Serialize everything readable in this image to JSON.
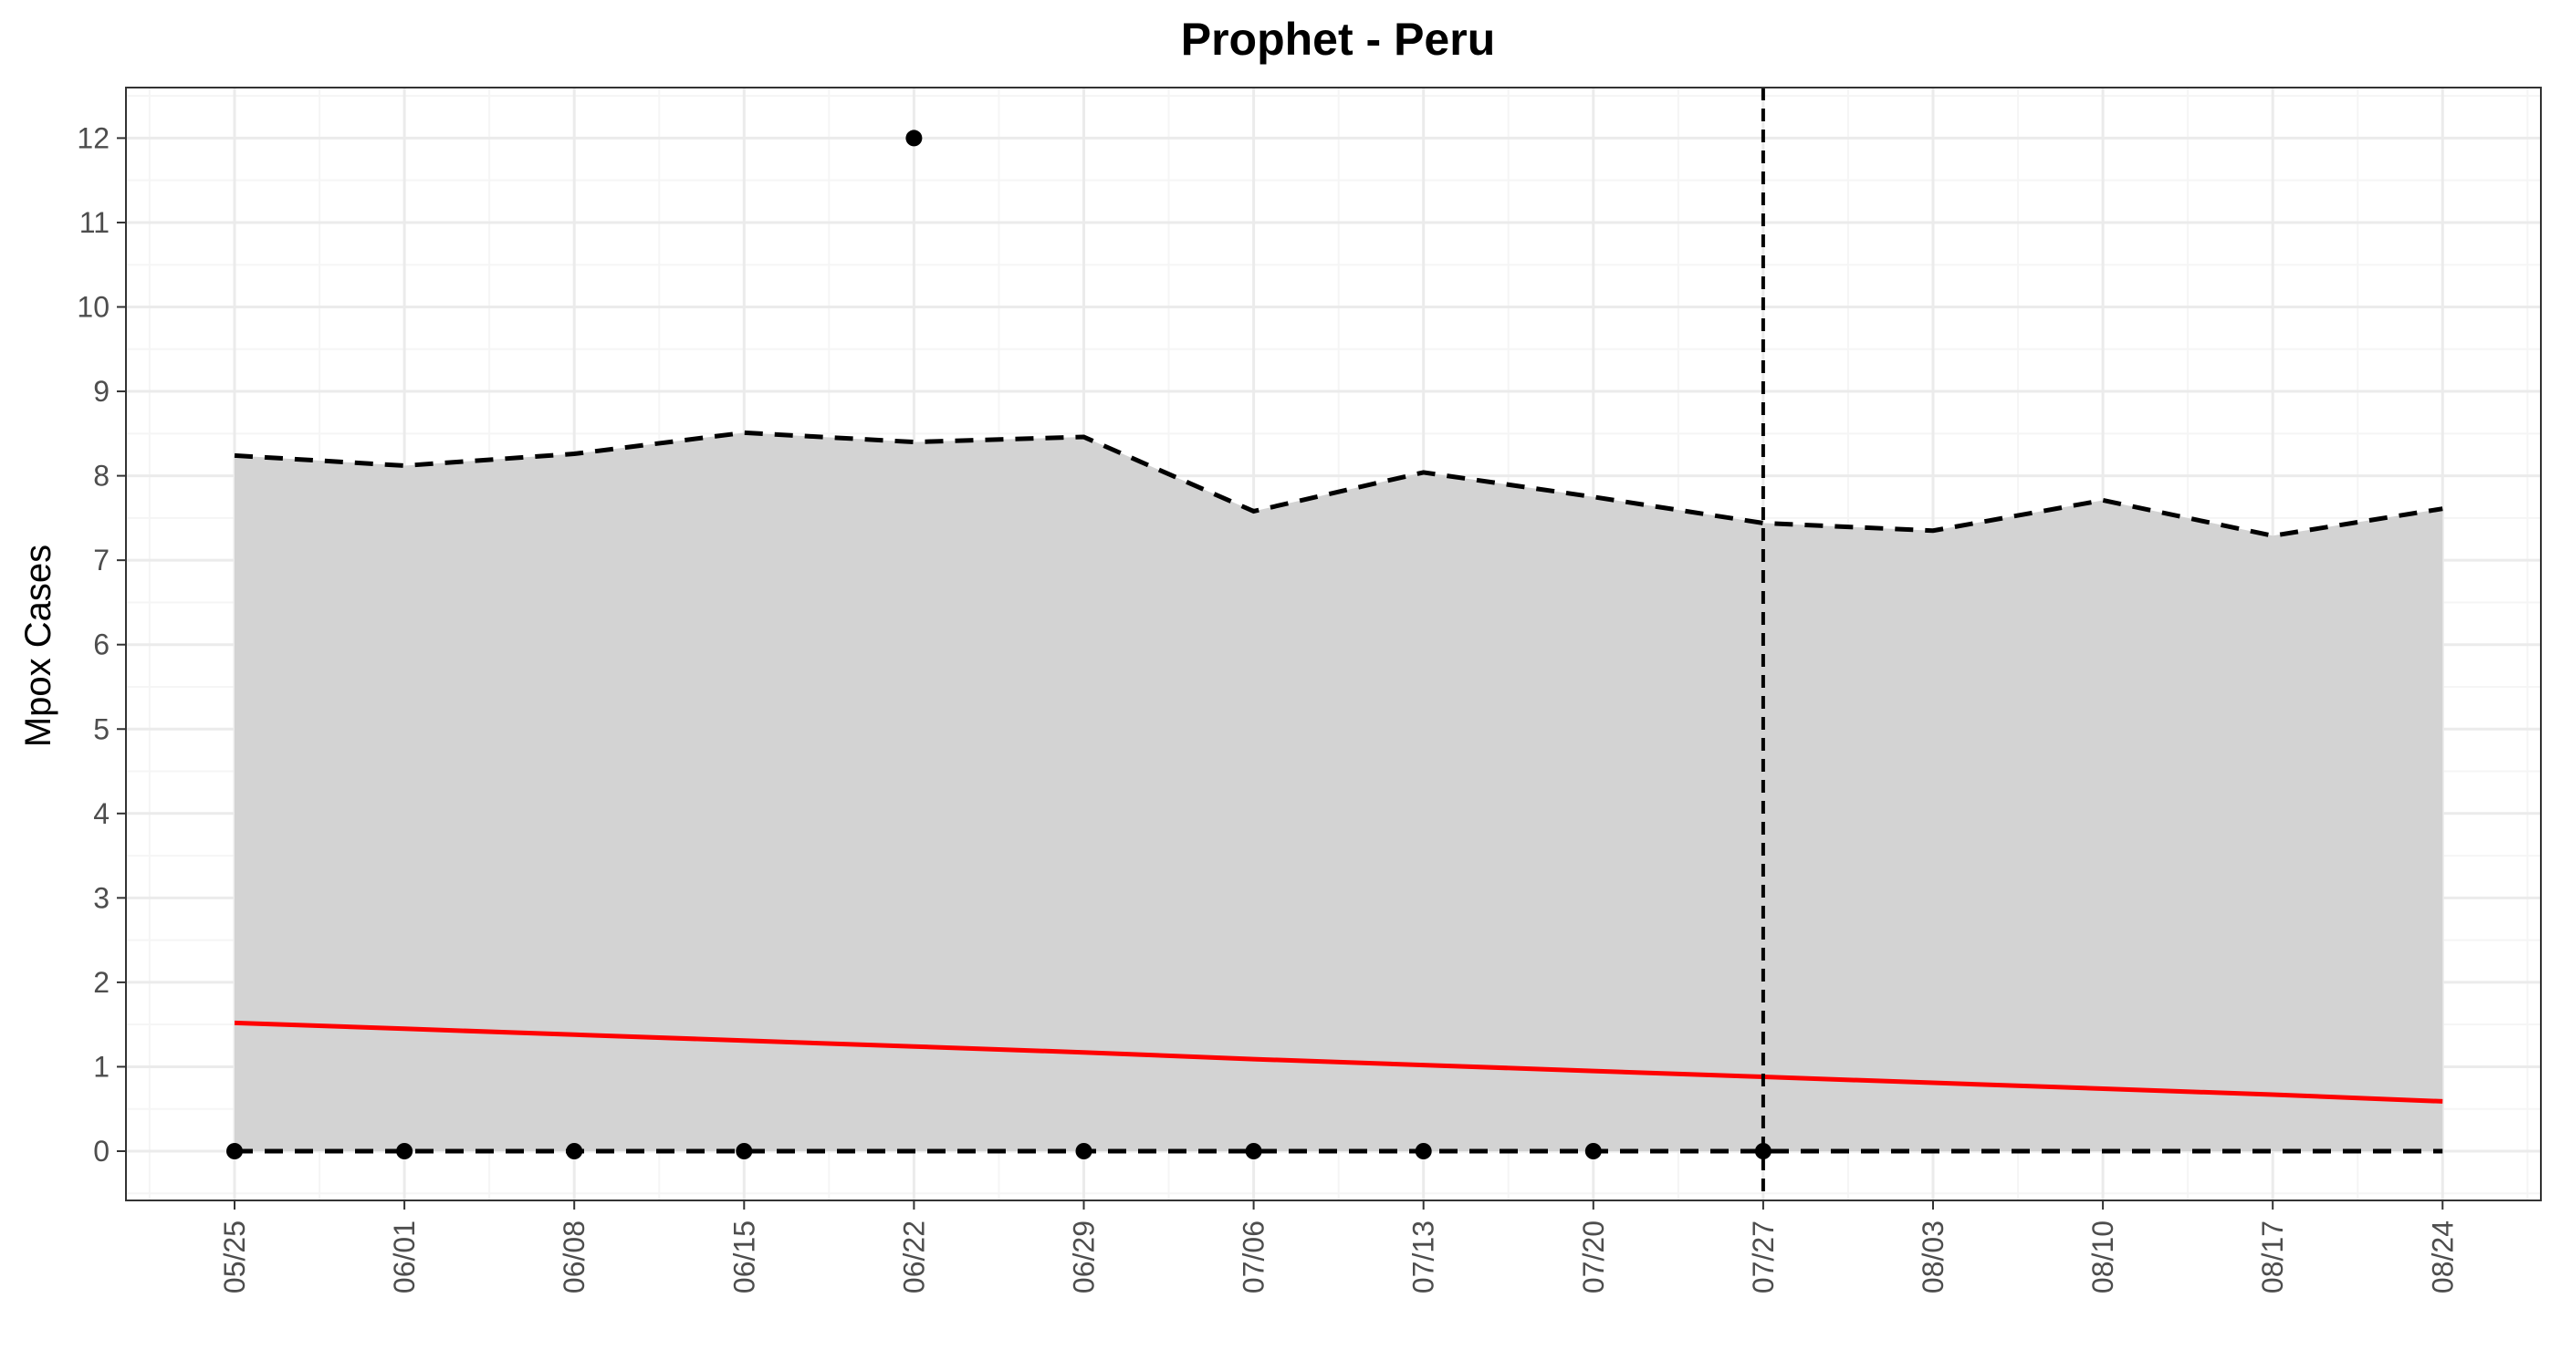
{
  "chart_data": {
    "type": "line",
    "title": "Prophet - Peru",
    "xlabel": "",
    "ylabel": "Mpox Cases",
    "x_tick_labels": [
      "05/25",
      "06/01",
      "06/08",
      "06/15",
      "06/22",
      "06/29",
      "07/06",
      "07/13",
      "07/20",
      "07/27",
      "08/03",
      "08/10",
      "08/17",
      "08/24"
    ],
    "y_ticks": [
      0,
      1,
      2,
      3,
      4,
      5,
      6,
      7,
      8,
      9,
      10,
      11,
      12
    ],
    "ylim": [
      -0.58,
      12.6
    ],
    "grid": true,
    "legend": "none",
    "forecast_start": "07/27",
    "series": [
      {
        "kind": "observed_points",
        "x": [
          "05/25",
          "06/01",
          "06/08",
          "06/15",
          "06/22",
          "06/29",
          "07/06",
          "07/13",
          "07/20",
          "07/27"
        ],
        "values": [
          0,
          0,
          0,
          0,
          12,
          0,
          0,
          0,
          0,
          0
        ]
      },
      {
        "kind": "fitted_line",
        "x": [
          "05/25",
          "06/01",
          "06/08",
          "06/15",
          "06/22",
          "06/29",
          "07/06",
          "07/13",
          "07/20",
          "07/27",
          "08/03",
          "08/10",
          "08/17",
          "08/24"
        ],
        "values": [
          1.52,
          1.45,
          1.38,
          1.31,
          1.24,
          1.17,
          1.09,
          1.02,
          0.95,
          0.88,
          0.81,
          0.74,
          0.67,
          0.59
        ]
      },
      {
        "kind": "upper_bound",
        "x": [
          "05/25",
          "06/01",
          "06/08",
          "06/15",
          "06/22",
          "06/29",
          "07/06",
          "07/13",
          "07/20",
          "07/27",
          "08/03",
          "08/10",
          "08/17",
          "08/24"
        ],
        "values": [
          8.24,
          8.12,
          8.26,
          8.51,
          8.4,
          8.46,
          7.58,
          8.04,
          7.75,
          7.44,
          7.35,
          7.71,
          7.29,
          7.61
        ]
      },
      {
        "kind": "lower_bound",
        "x": [
          "05/25",
          "06/01",
          "06/08",
          "06/15",
          "06/22",
          "06/29",
          "07/06",
          "07/13",
          "07/20",
          "07/27",
          "08/03",
          "08/10",
          "08/17",
          "08/24"
        ],
        "values": [
          0,
          0,
          0,
          0,
          0,
          0,
          0,
          0,
          0,
          0,
          0,
          0,
          0,
          0
        ]
      }
    ],
    "colors": {
      "band_fill": "#d3d3d3",
      "fitted_line": "#ff0000",
      "bounds": "#000000",
      "points": "#000000",
      "grid_major": "#ebebeb",
      "grid_minor": "#f5f5f5",
      "panel_border": "#333333"
    }
  }
}
